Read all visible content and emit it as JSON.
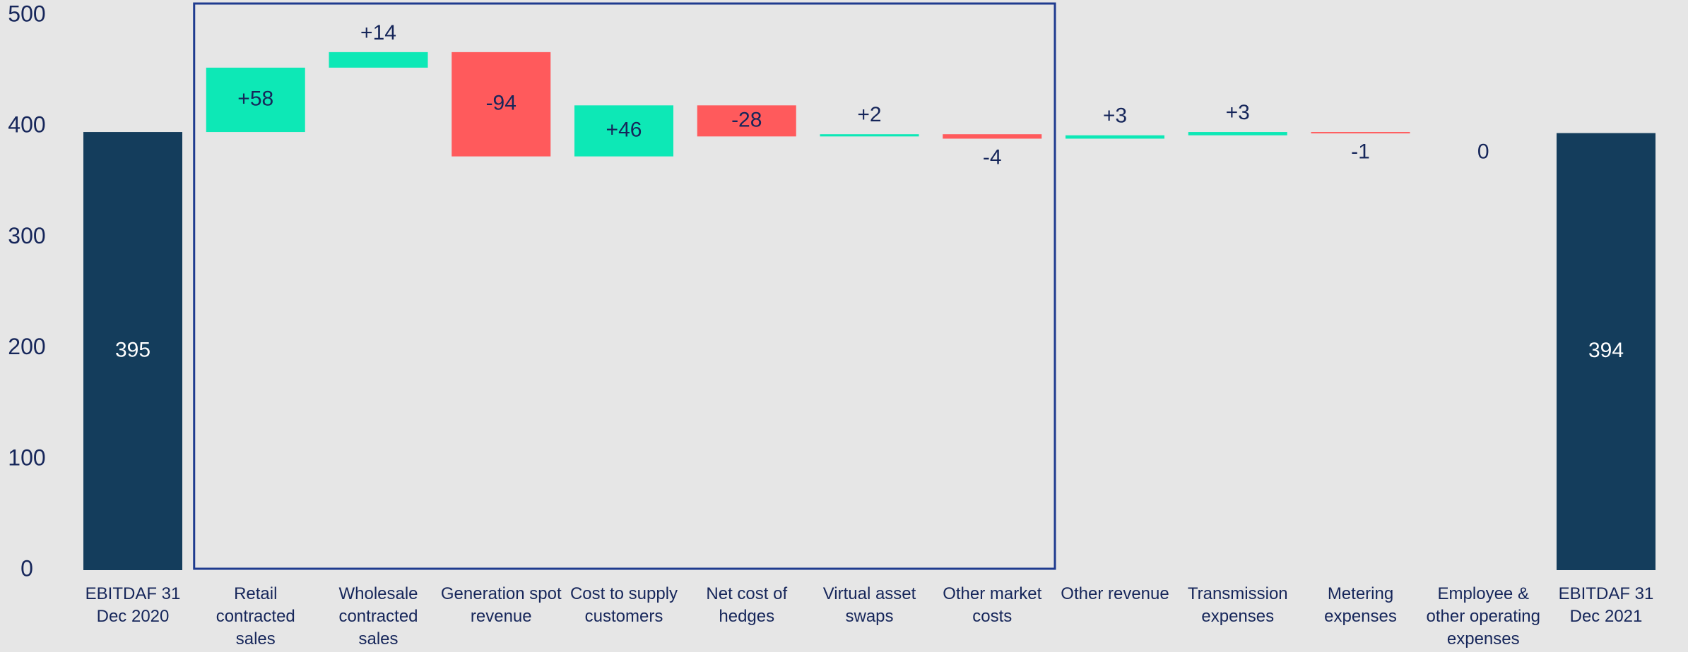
{
  "chart_data": {
    "type": "waterfall",
    "categories": [
      "EBITDAF 31 Dec 2020",
      "Retail contracted sales",
      "Wholesale contracted sales",
      "Generation spot revenue",
      "Cost to supply customers",
      "Net cost of hedges",
      "Virtual asset swaps",
      "Other market costs",
      "Other revenue",
      "Transmission expenses",
      "Metering expenses",
      "Employee & other operating expenses",
      "EBITDAF 31 Dec 2021"
    ],
    "values": [
      395,
      58,
      14,
      -94,
      46,
      -28,
      2,
      -4,
      3,
      3,
      -1,
      0,
      394
    ],
    "value_labels": [
      "395",
      "+58",
      "+14",
      "-94",
      "+46",
      "-28",
      "+2",
      "-4",
      "+3",
      "+3",
      "-1",
      "0",
      "394"
    ],
    "measure": [
      "absolute",
      "relative",
      "relative",
      "relative",
      "relative",
      "relative",
      "relative",
      "relative",
      "relative",
      "relative",
      "relative",
      "relative",
      "absolute"
    ],
    "total_color": "#143d5c",
    "increase_color": "#0de8b6",
    "decrease_color": "#ff5a5c",
    "ylim": [
      0,
      500
    ],
    "yticks": [
      0,
      100,
      200,
      300,
      400,
      500
    ],
    "grid": false
  }
}
